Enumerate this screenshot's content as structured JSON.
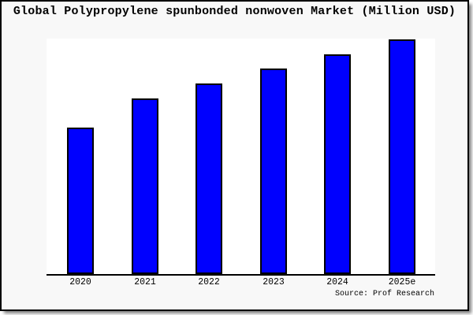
{
  "title": "Global Polypropylene spunbonded nonwoven Market (Million USD)",
  "source": "Source: Prof Research",
  "colors": {
    "bar_fill": "#0000fe",
    "bar_border": "#000000",
    "card_background": "#f8f8f8",
    "plot_background": "#ffffff",
    "axis_line": "#000000",
    "border": "#000000",
    "shadow": "#808080",
    "text": "#000000"
  },
  "chart_data": {
    "type": "bar",
    "title": "Global Polypropylene spunbonded nonwoven Market (Million USD)",
    "categories": [
      "2020",
      "2021",
      "2022",
      "2023",
      "2024",
      "2025e"
    ],
    "values": [
      186,
      223,
      242,
      261,
      279,
      298
    ],
    "values_note": "no y-axis scale or data labels shown in image; values are relative bar heights in pixels",
    "xlabel": "",
    "ylabel": "",
    "ylim": [
      0,
      299
    ],
    "gridlines": false,
    "legend": false,
    "y_axis_visible": false,
    "x_axis_visible": true,
    "source_annotation": "Source: Prof Research"
  }
}
